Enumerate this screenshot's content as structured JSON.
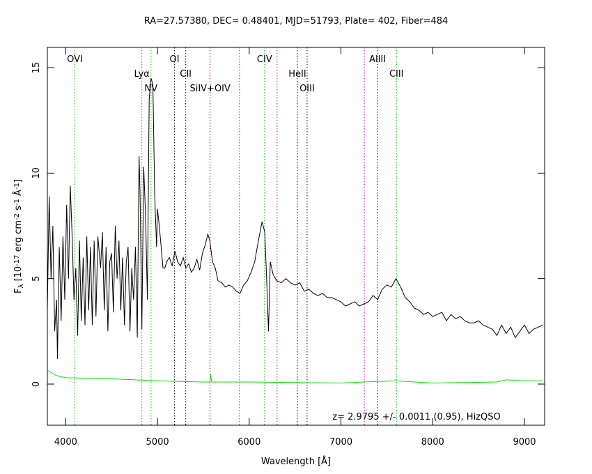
{
  "chart_data": {
    "type": "line",
    "title": "RA=27.57380, DEC= 0.48401, MJD=51793, Plate= 402, Fiber=484",
    "xlabel": "Wavelength [Å]",
    "ylabel_parts": [
      "F",
      "λ",
      " [10",
      "-17",
      " erg cm",
      "-2",
      " s",
      "-1",
      " Å",
      "-1",
      "]"
    ],
    "annotation": "z= 2.9795 +/- 0.0011 (0.95), HizQSO",
    "xlim": [
      3800,
      9220
    ],
    "ylim": [
      -1.95,
      15.96
    ],
    "xticks": [
      4000,
      5000,
      6000,
      7000,
      8000,
      9000
    ],
    "yticks": [
      0,
      5,
      10,
      15
    ],
    "series": [
      {
        "color": "#000000",
        "x": [
          3800,
          3820,
          3840,
          3860,
          3880,
          3900,
          3910,
          3930,
          3950,
          3970,
          3990,
          4010,
          4030,
          4050,
          4070,
          4090,
          4110,
          4130,
          4150,
          4170,
          4190,
          4210,
          4230,
          4250,
          4270,
          4290,
          4310,
          4330,
          4350,
          4380,
          4400,
          4420,
          4440,
          4460,
          4480,
          4500,
          4520,
          4540,
          4560,
          4580,
          4600,
          4620,
          4640,
          4660,
          4680,
          4700,
          4720,
          4740,
          4760,
          4780,
          4800,
          4810,
          4830,
          4850,
          4870,
          4890,
          4910,
          4930,
          4950,
          4970,
          4990,
          5000,
          5020,
          5040,
          5060,
          5080,
          5100,
          5130,
          5160,
          5190,
          5220,
          5250,
          5280,
          5310,
          5340,
          5370,
          5400,
          5430,
          5460,
          5490,
          5520,
          5550,
          5570,
          5600,
          5630,
          5660,
          5700,
          5740,
          5780,
          5820,
          5860,
          5900,
          5940,
          5980,
          6020,
          6060,
          6100,
          6140,
          6170,
          6190,
          6210,
          6230,
          6260,
          6300,
          6350,
          6400,
          6450,
          6500,
          6550,
          6600,
          6650,
          6700,
          6750,
          6800,
          6850,
          6900,
          6950,
          7000,
          7050,
          7100,
          7150,
          7200,
          7250,
          7300,
          7350,
          7400,
          7450,
          7500,
          7550,
          7600,
          7650,
          7700,
          7750,
          7800,
          7850,
          7900,
          7950,
          8000,
          8050,
          8100,
          8150,
          8200,
          8250,
          8300,
          8350,
          8400,
          8450,
          8500,
          8550,
          8600,
          8650,
          8700,
          8750,
          8800,
          8850,
          8900,
          8950,
          9000,
          9050,
          9100,
          9150,
          9200
        ],
        "values": [
          3.5,
          8.9,
          5.0,
          7.5,
          2.5,
          4.0,
          1.2,
          6.5,
          3.0,
          7.0,
          4.0,
          8.5,
          5.0,
          9.4,
          7.0,
          4.0,
          5.5,
          2.3,
          6.8,
          3.0,
          6.0,
          2.8,
          7.0,
          3.5,
          6.5,
          2.8,
          6.8,
          3.2,
          7.0,
          5.5,
          7.2,
          3.5,
          6.5,
          2.5,
          5.8,
          6.2,
          3.4,
          7.5,
          5.0,
          6.8,
          3.5,
          6.0,
          2.8,
          5.8,
          6.5,
          2.5,
          5.5,
          4.0,
          6.5,
          2.2,
          10.8,
          9.0,
          2.6,
          10.3,
          8.0,
          4.0,
          13.5,
          14.5,
          14.2,
          9.0,
          6.5,
          8.3,
          7.5,
          6.5,
          5.5,
          5.5,
          5.8,
          6.0,
          5.6,
          6.3,
          5.8,
          5.6,
          6.0,
          5.5,
          5.7,
          5.3,
          5.5,
          5.9,
          5.4,
          6.2,
          6.6,
          7.1,
          6.8,
          5.8,
          5.5,
          4.9,
          4.8,
          4.6,
          4.7,
          4.6,
          4.4,
          4.3,
          4.7,
          4.9,
          5.3,
          5.8,
          6.8,
          7.7,
          7.2,
          5.0,
          2.5,
          5.8,
          5.2,
          4.9,
          4.8,
          5.0,
          4.8,
          4.7,
          4.8,
          4.4,
          4.5,
          4.3,
          4.2,
          4.3,
          4.1,
          4.1,
          4.0,
          3.9,
          3.7,
          3.8,
          3.9,
          3.7,
          3.8,
          3.9,
          4.2,
          4.0,
          4.5,
          4.7,
          4.6,
          5.0,
          4.6,
          4.1,
          3.9,
          3.6,
          3.5,
          3.3,
          3.4,
          3.2,
          3.3,
          3.4,
          3.0,
          3.3,
          3.1,
          3.2,
          3.0,
          2.9,
          2.9,
          3.0,
          2.8,
          2.7,
          2.6,
          2.3,
          2.8,
          2.4,
          2.7,
          2.2,
          2.5,
          2.8,
          2.4,
          2.6,
          2.7,
          2.8
        ]
      },
      {
        "color": "#00e000",
        "x": [
          3800,
          3900,
          4000,
          4500,
          5000,
          5500,
          5570,
          5580,
          5590,
          6000,
          7000,
          7250,
          7600,
          8000,
          8700,
          8800,
          9000,
          9200
        ],
        "values": [
          0.65,
          0.4,
          0.3,
          0.25,
          0.15,
          0.1,
          0.1,
          0.45,
          0.1,
          0.1,
          0.05,
          0.1,
          0.15,
          0.05,
          0.1,
          0.2,
          0.15,
          0.15
        ]
      }
    ],
    "lines": [
      {
        "name": "OVI",
        "x": 4100,
        "color": "#00c000"
      },
      {
        "name": "Lyα",
        "x": 4830,
        "color": "#00c000"
      },
      {
        "name": "NV",
        "x": 4930,
        "color": "#00c000"
      },
      {
        "name": "OI",
        "x": 5186,
        "color": "#000000"
      },
      {
        "name": "CII",
        "x": 5308,
        "color": "#000000"
      },
      {
        "name": "SiIV+OIV",
        "x": 5574,
        "color": "#800000"
      },
      {
        "name": "CIV",
        "x": 6167,
        "color": "#00c000"
      },
      {
        "name": "HeII",
        "x": 6525,
        "color": "#000000"
      },
      {
        "name": "OIII",
        "x": 6631,
        "color": "#000000"
      },
      {
        "name": "AlIII",
        "x": 7399,
        "color": "#000000"
      },
      {
        "name": "CIII",
        "x": 7605,
        "color": "#00c000"
      }
    ],
    "sky_lines": [
      {
        "x": 5894,
        "color": "#c000c0"
      },
      {
        "x": 6304,
        "color": "#c000c0"
      },
      {
        "x": 7255,
        "color": "#c000c0"
      }
    ]
  }
}
